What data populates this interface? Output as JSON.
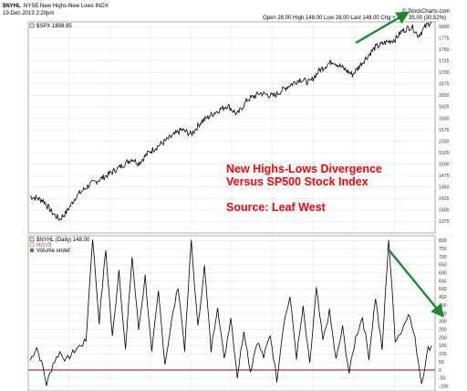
{
  "header": {
    "ticker": "$NYHL",
    "name": "NYSE New Highs-New Lows INDX",
    "date": "19-Dec-2013 2:20pm",
    "quote": "Open 28.00  High 148.00  Low 28.00  Last 148.00  Chg +",
    "change": "35.00 (30.52%)",
    "watermark": "© StockCharts.com"
  },
  "annotation": {
    "line1": "New Highs-Lows Divergence",
    "line2": "Versus SP500 Stock Index",
    "line3": "Source: Leaf West"
  },
  "colors": {
    "price_line": "#000000",
    "oscillator_line": "#000000",
    "zero_line": "#b03050",
    "arrow": "#1a8a2a",
    "annotation": "#ff0000",
    "grid": "#e3e3e3"
  },
  "chart_data": [
    {
      "type": "line",
      "legend": "$SPX 1808.95",
      "ylim": [
        1350,
        1810
      ],
      "y_ticks": [
        1375,
        1400,
        1425,
        1450,
        1475,
        1500,
        1525,
        1550,
        1575,
        1600,
        1625,
        1650,
        1675,
        1700,
        1725,
        1750,
        1775,
        1800
      ],
      "anchors": [
        [
          0,
          1430
        ],
        [
          8,
          1421
        ],
        [
          14,
          1392
        ],
        [
          18,
          1380
        ],
        [
          22,
          1395
        ],
        [
          28,
          1430
        ],
        [
          36,
          1455
        ],
        [
          44,
          1470
        ],
        [
          54,
          1492
        ],
        [
          62,
          1512
        ],
        [
          66,
          1502
        ],
        [
          72,
          1525
        ],
        [
          82,
          1550
        ],
        [
          92,
          1575
        ],
        [
          98,
          1565
        ],
        [
          104,
          1592
        ],
        [
          112,
          1612
        ],
        [
          120,
          1628
        ],
        [
          126,
          1608
        ],
        [
          132,
          1640
        ],
        [
          140,
          1655
        ],
        [
          148,
          1648
        ],
        [
          156,
          1668
        ],
        [
          164,
          1685
        ],
        [
          170,
          1678
        ],
        [
          176,
          1705
        ],
        [
          184,
          1725
        ],
        [
          190,
          1710
        ],
        [
          196,
          1695
        ],
        [
          202,
          1722
        ],
        [
          210,
          1755
        ],
        [
          216,
          1765
        ],
        [
          222,
          1772
        ],
        [
          226,
          1790
        ],
        [
          232,
          1800
        ],
        [
          236,
          1780
        ],
        [
          240,
          1798
        ],
        [
          244,
          1812
        ]
      ],
      "trend_arrow": {
        "from": [
          390,
          47
        ],
        "to": [
          445,
          15
        ],
        "label": ""
      }
    },
    {
      "type": "line",
      "legend_lines": [
        "$NYHL (Daily) 148.00",
        "H(0,0)",
        "Volume undef"
      ],
      "ylim": [
        -130,
        830
      ],
      "y_ticks": [
        -100,
        -50,
        0,
        50,
        100,
        150,
        200,
        250,
        300,
        350,
        400,
        450,
        500,
        550,
        600,
        650,
        700,
        750,
        800
      ],
      "zero_line": 0,
      "peaks": [
        [
          0,
          60
        ],
        [
          4,
          140
        ],
        [
          8,
          10
        ],
        [
          10,
          -90
        ],
        [
          14,
          40
        ],
        [
          18,
          110
        ],
        [
          22,
          60
        ],
        [
          28,
          130
        ],
        [
          34,
          180
        ],
        [
          38,
          820
        ],
        [
          42,
          300
        ],
        [
          46,
          740
        ],
        [
          50,
          200
        ],
        [
          54,
          620
        ],
        [
          58,
          120
        ],
        [
          62,
          700
        ],
        [
          66,
          250
        ],
        [
          70,
          580
        ],
        [
          74,
          100
        ],
        [
          78,
          480
        ],
        [
          82,
          40
        ],
        [
          86,
          300
        ],
        [
          90,
          520
        ],
        [
          94,
          130
        ],
        [
          98,
          800
        ],
        [
          102,
          260
        ],
        [
          106,
          640
        ],
        [
          110,
          120
        ],
        [
          114,
          400
        ],
        [
          118,
          60
        ],
        [
          122,
          330
        ],
        [
          126,
          -40
        ],
        [
          130,
          250
        ],
        [
          134,
          -10
        ],
        [
          138,
          180
        ],
        [
          142,
          80
        ],
        [
          146,
          220
        ],
        [
          150,
          -60
        ],
        [
          154,
          280
        ],
        [
          158,
          450
        ],
        [
          162,
          80
        ],
        [
          166,
          380
        ],
        [
          170,
          30
        ],
        [
          174,
          500
        ],
        [
          178,
          180
        ],
        [
          182,
          360
        ],
        [
          186,
          60
        ],
        [
          190,
          260
        ],
        [
          194,
          -20
        ],
        [
          198,
          200
        ],
        [
          202,
          330
        ],
        [
          206,
          80
        ],
        [
          210,
          450
        ],
        [
          214,
          120
        ],
        [
          218,
          810
        ],
        [
          222,
          190
        ],
        [
          226,
          240
        ],
        [
          230,
          360
        ],
        [
          234,
          190
        ],
        [
          238,
          -80
        ],
        [
          242,
          130
        ],
        [
          244,
          148
        ]
      ],
      "trend_arrow": {
        "from": [
          425,
          272
        ],
        "to": [
          484,
          344
        ],
        "label": ""
      }
    }
  ]
}
